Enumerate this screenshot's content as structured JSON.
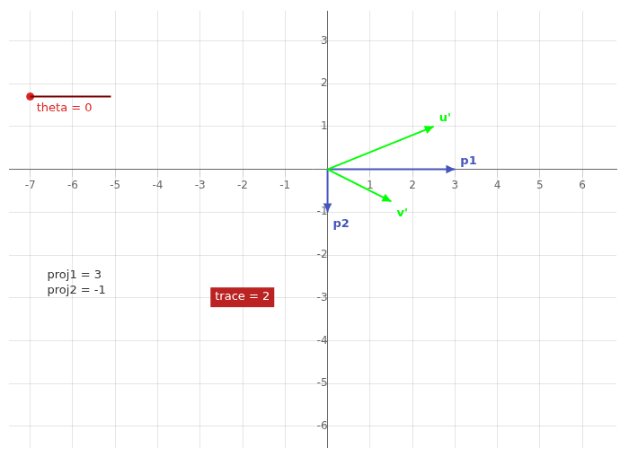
{
  "chart_data": {
    "type": "vector",
    "xlim": [
      -7.5,
      6.8
    ],
    "ylim": [
      -6.5,
      3.7
    ],
    "xticks": [
      -7,
      -6,
      -5,
      -4,
      -3,
      -2,
      -1,
      1,
      2,
      3,
      4,
      5,
      6
    ],
    "yticks": [
      -6,
      -5,
      -4,
      -3,
      -2,
      -1,
      1,
      2,
      3
    ],
    "grid": true,
    "series": [
      {
        "name": "u'",
        "type": "vector",
        "color": "#00ff00",
        "x": [
          0,
          2.5
        ],
        "y": [
          0,
          1.0
        ]
      },
      {
        "name": "v'",
        "type": "vector",
        "color": "#00ff00",
        "x": [
          0,
          1.5
        ],
        "y": [
          0,
          -0.75
        ]
      },
      {
        "name": "p1",
        "type": "vector",
        "color": "#4455bb",
        "x": [
          0,
          3.0
        ],
        "y": [
          0,
          0.0
        ]
      },
      {
        "name": "p2",
        "type": "vector",
        "color": "#4455bb",
        "x": [
          0,
          0.0
        ],
        "y": [
          0,
          -1.0
        ]
      },
      {
        "type": "line",
        "color": "#7a0000",
        "x": [
          -7.0,
          -5.1
        ],
        "y": [
          1.7,
          1.7
        ]
      },
      {
        "type": "scatter",
        "marker": "circle",
        "color": "#dd2222",
        "x": [
          -7.0
        ],
        "y": [
          1.7
        ]
      }
    ],
    "annotations": [
      {
        "text": "theta = 0",
        "x": -6.85,
        "y": 1.35,
        "color": "#dd2222"
      },
      {
        "text": "proj1 = 3",
        "x": -6.6,
        "y": -2.55
      },
      {
        "text": "proj2 = -1",
        "x": -6.6,
        "y": -2.9
      },
      {
        "text": "trace = 2",
        "x": -2.65,
        "y": -3.05,
        "background": "#bb2222"
      }
    ]
  }
}
